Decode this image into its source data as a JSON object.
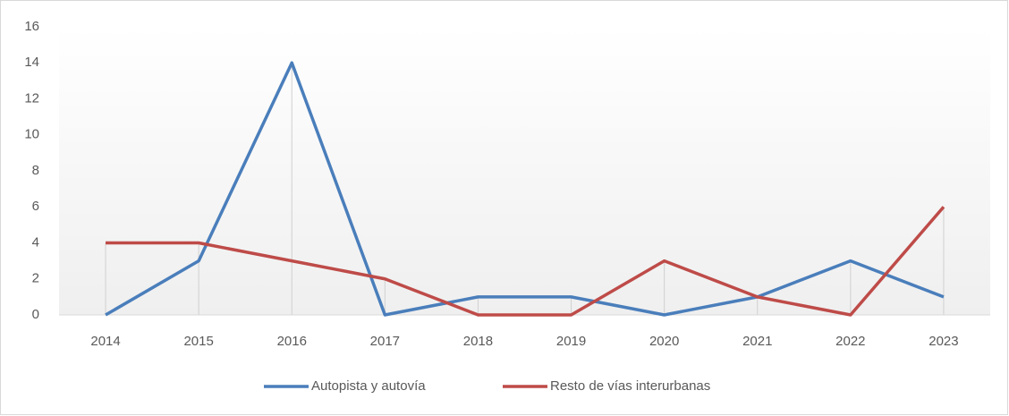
{
  "chart_data": {
    "type": "line",
    "categories": [
      "2014",
      "2015",
      "2016",
      "2017",
      "2018",
      "2019",
      "2020",
      "2021",
      "2022",
      "2023"
    ],
    "series": [
      {
        "name": "Autopista y autovía",
        "color": "#4a7ebb",
        "values": [
          0,
          3,
          14,
          0,
          1,
          1,
          0,
          1,
          3,
          1
        ]
      },
      {
        "name": "Resto de vías interurbanas",
        "color": "#be4b48",
        "values": [
          4,
          4,
          3,
          2,
          0,
          0,
          3,
          1,
          0,
          6
        ]
      }
    ],
    "ylim": [
      0,
      16
    ],
    "yticks": [
      0,
      2,
      4,
      6,
      8,
      10,
      12,
      14,
      16
    ],
    "drop_lines": true,
    "legend": "bottom"
  }
}
